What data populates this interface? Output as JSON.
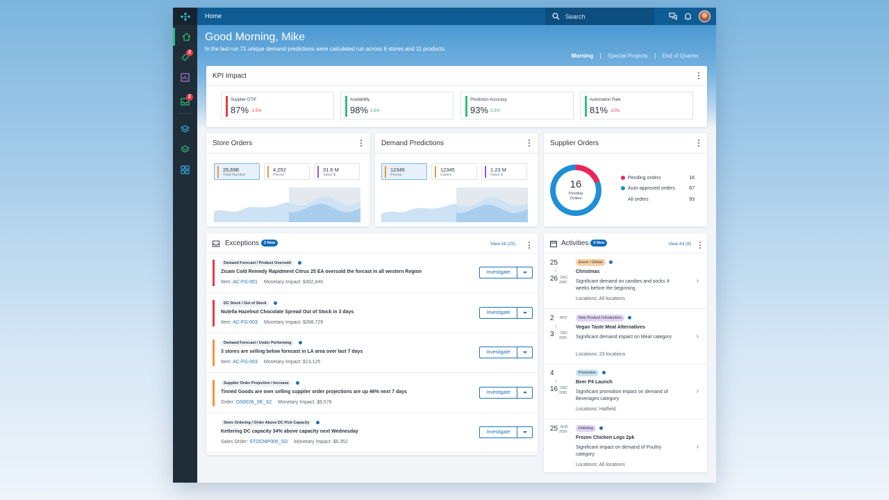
{
  "header": {
    "breadcrumb": "Home",
    "search_placeholder": "Search"
  },
  "hero": {
    "greeting": "Good Morning, Mike",
    "subtitle": "In the last run 71 unique demand predictions were calculated run across 6 stores and 11 products.",
    "tabs": [
      "Morning",
      "Special Projects",
      "End of Quarter"
    ]
  },
  "sidebar": {
    "items": [
      {
        "icon": "home-icon",
        "active": true
      },
      {
        "icon": "tag-icon",
        "badge": "2"
      },
      {
        "icon": "chart-icon"
      },
      {
        "icon": "inbox-icon",
        "badge": "2"
      },
      {
        "icon": "layers-icon"
      },
      {
        "icon": "layers-alt-icon"
      },
      {
        "icon": "grid-icon"
      }
    ]
  },
  "kpi": {
    "title": "KPI Impact",
    "items": [
      {
        "name": "Supplier OTIF",
        "value": "87%",
        "delta": "-1.5%",
        "color": "#e53946",
        "delta_color": "#e53946"
      },
      {
        "name": "Availability",
        "value": "98%",
        "delta": "1.5%",
        "color": "#2ec07a",
        "delta_color": "#2ea864"
      },
      {
        "name": "Prediction Accuracy",
        "value": "93%",
        "delta": "0.2%",
        "color": "#2ec07a",
        "delta_color": "#2ea864"
      },
      {
        "name": "Automation Rate",
        "value": "81%",
        "delta": "-10%",
        "color": "#2ec07a",
        "delta_color": "#e53946"
      }
    ]
  },
  "store_orders": {
    "title": "Store Orders",
    "stats": [
      {
        "value": "25,698",
        "label": "Total Number",
        "color": "#f0963c"
      },
      {
        "value": "4,252",
        "label": "Pieces",
        "color": "#f0963c"
      },
      {
        "value": "31.6 M",
        "label": "Value $",
        "color": "#8c5ad6"
      }
    ]
  },
  "demand_predictions": {
    "title": "Demand Predictions",
    "stats": [
      {
        "value": "12345",
        "label": "Pieces",
        "color": "#f0963c"
      },
      {
        "value": "12345",
        "label": "Cases",
        "color": "#f0963c"
      },
      {
        "value": "1.23 M",
        "label": "Value $",
        "color": "#8c5ad6"
      }
    ]
  },
  "supplier_orders": {
    "title": "Supplier Orders",
    "total": "16",
    "total_label": "Pending Orders",
    "chart_data": {
      "type": "pie",
      "title": "",
      "categories": [
        "Pending orders",
        "Auto-approved orders"
      ],
      "values": [
        16,
        67
      ],
      "colors": [
        "#e8265c",
        "#1f8fd6"
      ]
    },
    "legend": [
      {
        "label": "Pending orders",
        "value": "16",
        "color": "#e8265c"
      },
      {
        "label": "Auto-approved orders",
        "value": "67",
        "color": "#1f8fd6"
      },
      {
        "label": "All orders",
        "value": "93",
        "color": ""
      }
    ]
  },
  "exceptions": {
    "title": "Exceptions",
    "badge": "2 New",
    "view_all": "View All (25)",
    "action_label": "Investigate",
    "rows": [
      {
        "tag": "Demand Forecast / Product Oversold",
        "title": "Zicam Cold Remedy Rapidment Citrus 25 EA oversold the forcast in all western Region",
        "id_label": "Item:",
        "id": "AC-FG-001",
        "impact": "Monetary Impact: $302,840",
        "color": "#e53946"
      },
      {
        "tag": "DC Stock / Out of Stock",
        "title": "Nutella Hazelnut Chocolate Spread Out of Stock in 3 days",
        "id_label": "Item:",
        "id": "AC-FG-003",
        "impact": "Monetary Impact: $288,729",
        "color": "#e53946"
      },
      {
        "tag": "Demand Forecast / Under Performing",
        "title": "3 stores are selling below forecast in LA area over last 7 days",
        "id_label": "Item:",
        "id": "AC-FG-003",
        "impact": "Monetary Impact: $13,125",
        "color": "#f0963c"
      },
      {
        "tag": "Supplier Order Projection / Increase",
        "title": "Tinned Goods are over selling supplier order projections are up 46% next 7 days",
        "id_label": "Order:",
        "id": "OS0026_SE_S2",
        "impact": "Monetary Impact: $9,576",
        "color": "#f0963c"
      },
      {
        "tag": "Store Ordering / Order Above DC Pick Capacity",
        "title": "Kettering DC capacity 34% above capacity next Wednesday",
        "id_label": "Sales Order:",
        "id": "STOCMP005_SD",
        "impact": "Monetary Impact: $8,352",
        "color": ""
      }
    ]
  },
  "activities": {
    "title": "Activities",
    "badge": "6 New",
    "view_all": "View All (8)",
    "rows": [
      {
        "start_day": "25",
        "end_day": "26",
        "end_month": "DEC",
        "end_year": "2020",
        "tag": "Event / Global",
        "tag_color": "#f7d3a1",
        "title": "Christmas",
        "desc": "Significant demand on candies and socks 4 weeks before the beginning",
        "loc": "Locations: All locations"
      },
      {
        "start_day": "2",
        "start_month": "NOV",
        "end_day": "3",
        "end_month": "DEC",
        "end_year": "2020",
        "tag": "New Product Introduction",
        "tag_color": "#e2d3f3",
        "title": "Vegan Taste Meat Alternatives",
        "desc": "Significant demand impact on Meat category",
        "loc": "Locations: 23 locations"
      },
      {
        "start_day": "4",
        "end_day": "16",
        "end_month": "DEC",
        "end_year": "2020",
        "tag": "Promotion",
        "tag_color": "#c7e3f5",
        "title": "Beer P4 Launch",
        "desc": "Significant promotion impact on demand of Beverages category",
        "loc": "Locations: Hatfield"
      },
      {
        "end_day": "25",
        "end_month": "AUG",
        "end_year": "2020",
        "tag": "Delisting",
        "tag_color": "#e2d3f3",
        "title": "Frozen Chicken Legs 2pk",
        "desc": "Significant impact on demand of Poultry category",
        "loc": "Locations: All locations"
      }
    ]
  }
}
